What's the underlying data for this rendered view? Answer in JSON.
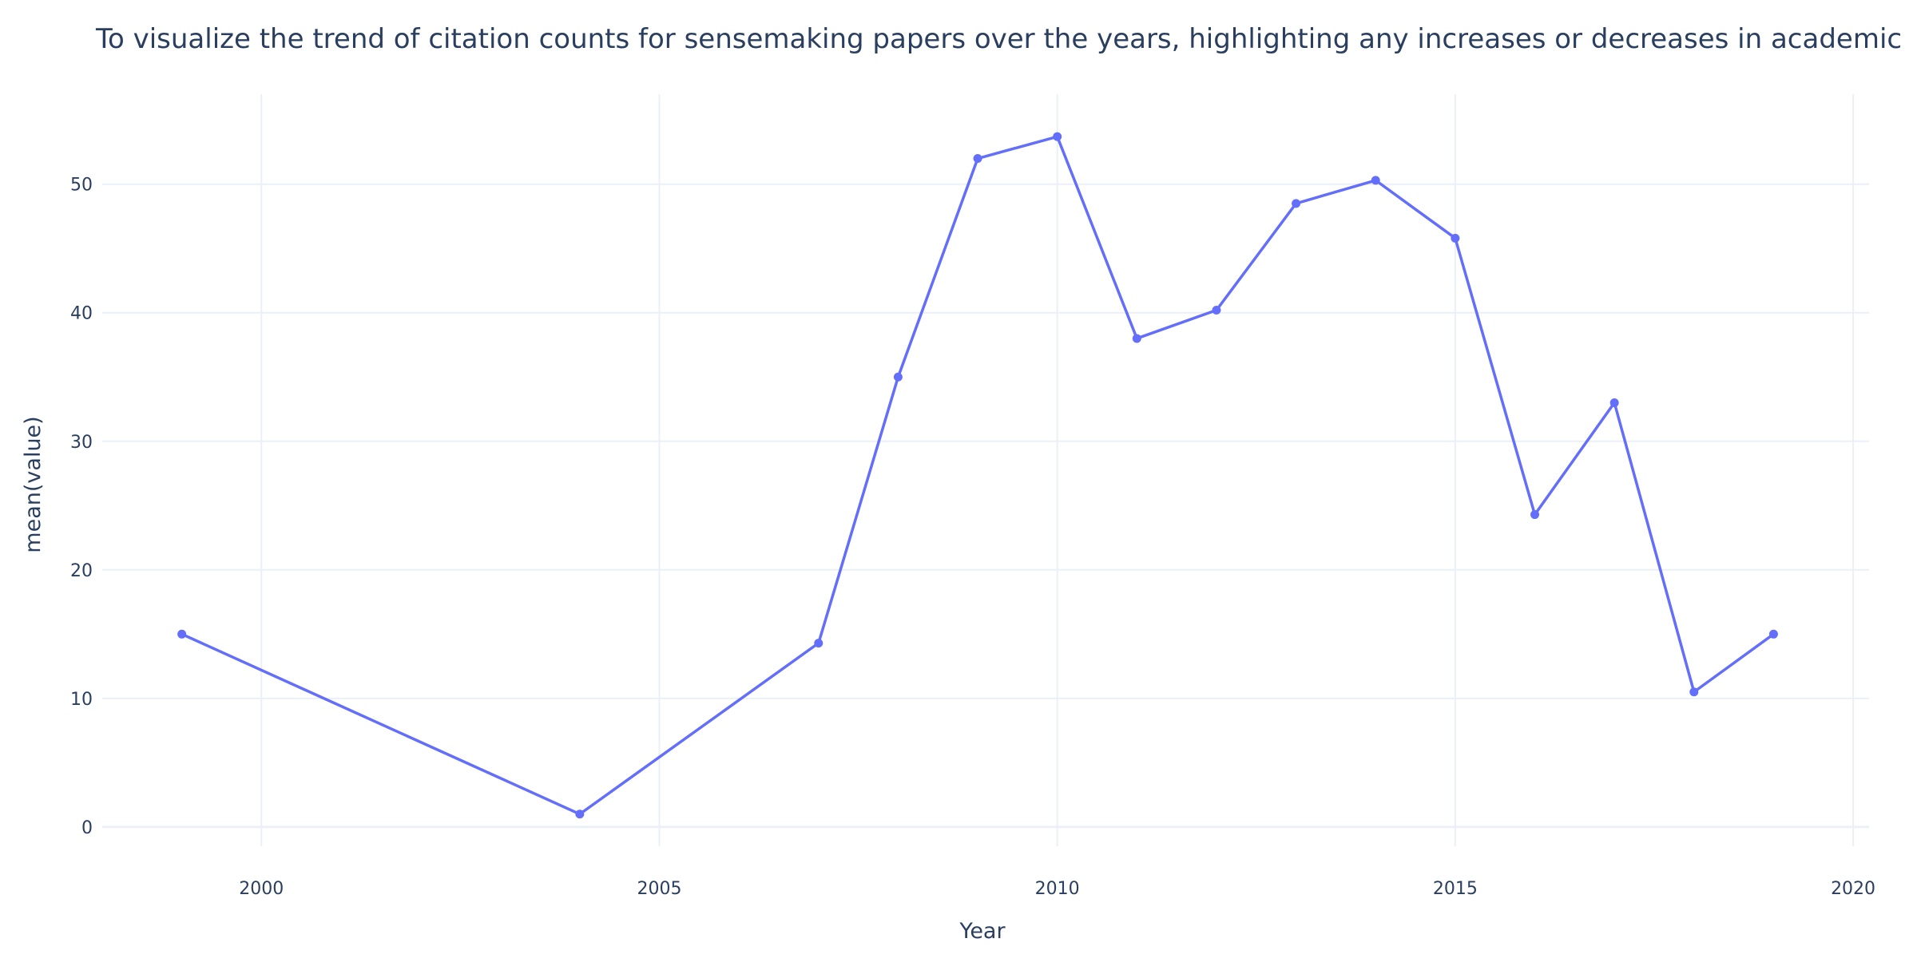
{
  "chart_data": {
    "type": "line",
    "title": "To visualize the trend of citation counts for sensemaking papers over the years, highlighting any increases or decreases in academic",
    "xlabel": "Year",
    "ylabel": "mean(value)",
    "xlim": [
      1998,
      2020.2
    ],
    "ylim": [
      -1.5,
      57
    ],
    "xticks": [
      2000,
      2005,
      2010,
      2015,
      2020
    ],
    "xtick_labels": [
      "2000",
      "2005",
      "2010",
      "2015",
      "2020"
    ],
    "yticks": [
      0,
      10,
      20,
      30,
      40,
      50
    ],
    "ytick_labels": [
      "0",
      "10",
      "20",
      "30",
      "40",
      "50"
    ],
    "grid": true,
    "series": [
      {
        "name": "mean(value)",
        "color": "#636efa",
        "x": [
          1999,
          2004,
          2007,
          2008,
          2009,
          2010,
          2011,
          2012,
          2013,
          2014,
          2015,
          2016,
          2017,
          2018,
          2019
        ],
        "y": [
          15,
          1,
          14.3,
          35,
          52,
          53.7,
          38,
          40.2,
          48.5,
          50.3,
          45.8,
          24.3,
          33,
          10.5,
          15
        ]
      }
    ]
  }
}
